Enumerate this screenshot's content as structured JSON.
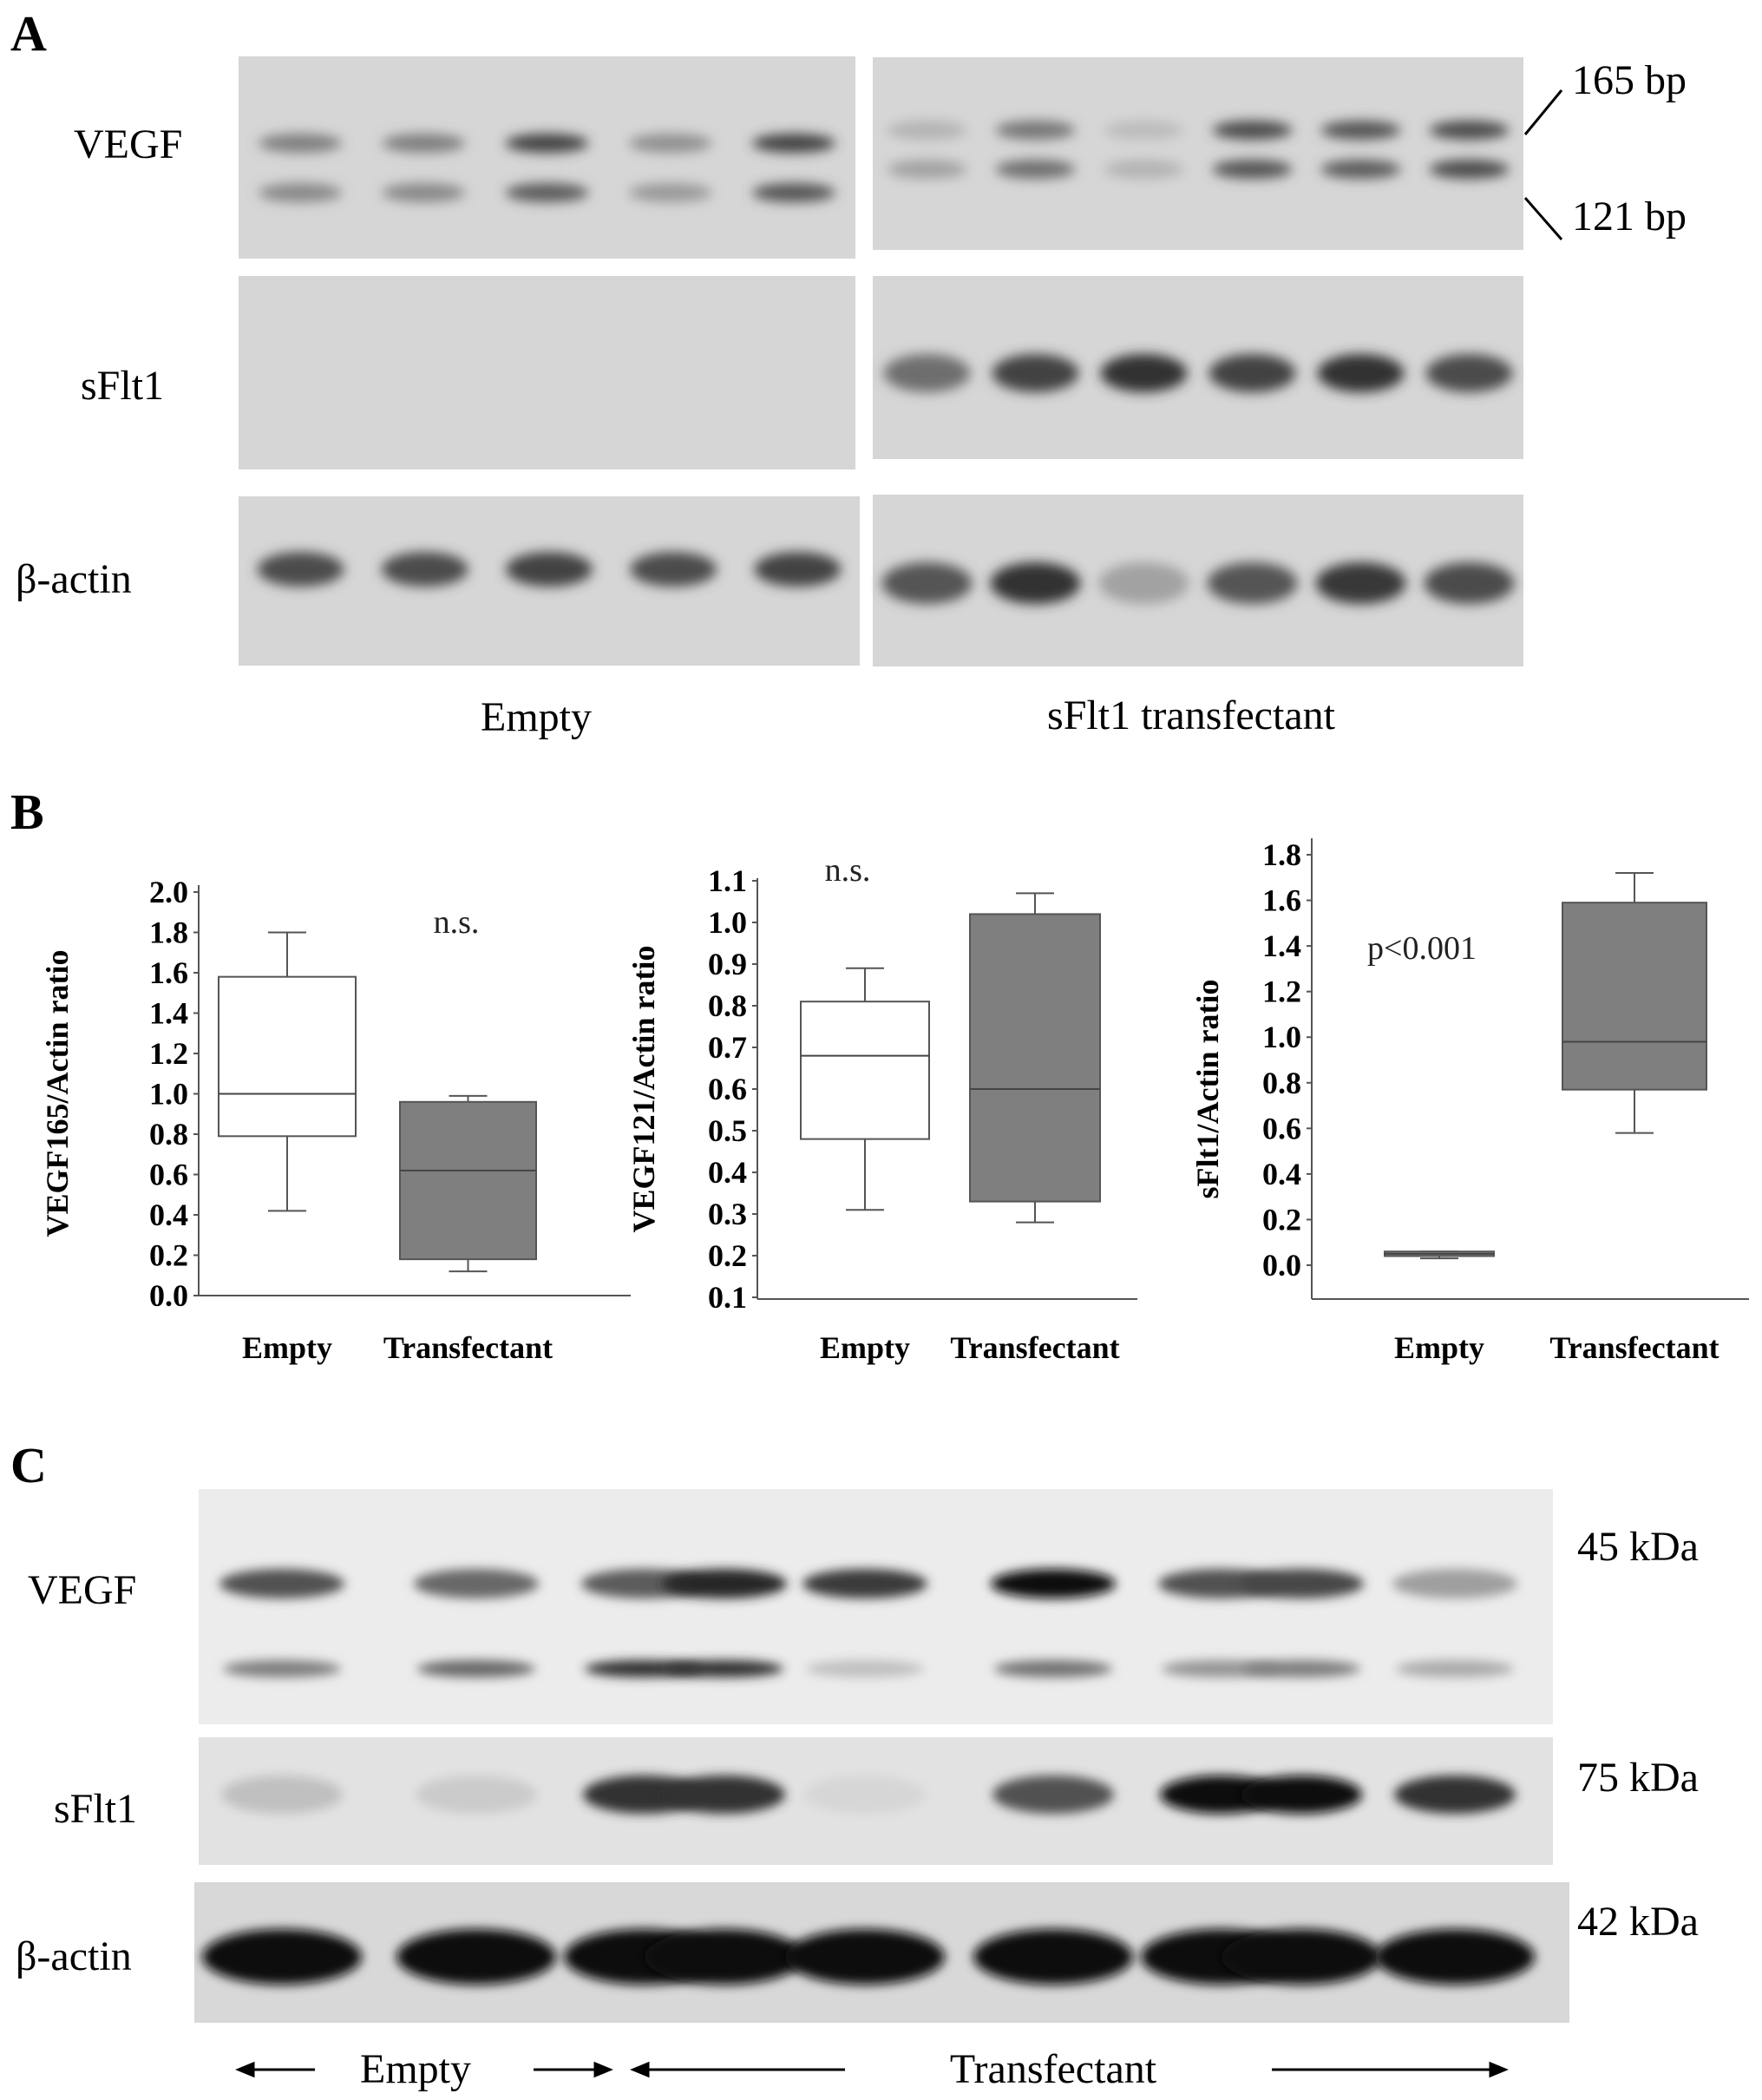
{
  "panels": {
    "a": {
      "letter": "A",
      "row_labels": [
        "VEGF",
        "sFlt1",
        "β-actin"
      ],
      "size_markers": [
        "165 bp",
        "121 bp"
      ],
      "group_labels": [
        "Empty",
        "sFlt1 transfectant"
      ],
      "band_intensity": {
        "vegf_165_empty": [
          0.5,
          0.5,
          0.85,
          0.4,
          0.85
        ],
        "vegf_121_empty": [
          0.45,
          0.45,
          0.7,
          0.35,
          0.75
        ],
        "vegf_165_transfectant": [
          0.2,
          0.55,
          0.15,
          0.8,
          0.75,
          0.8
        ],
        "vegf_121_transfectant": [
          0.3,
          0.6,
          0.2,
          0.75,
          0.7,
          0.8
        ],
        "sflt1_empty": [
          0,
          0,
          0,
          0,
          0
        ],
        "sflt1_transfectant": [
          0.6,
          0.85,
          0.95,
          0.85,
          0.95,
          0.8
        ],
        "actin_empty": [
          0.8,
          0.8,
          0.85,
          0.8,
          0.85
        ],
        "actin_transfectant": [
          0.75,
          0.95,
          0.3,
          0.75,
          0.9,
          0.8
        ]
      }
    },
    "b": {
      "letter": "B"
    },
    "c": {
      "letter": "C",
      "row_labels": [
        "VEGF",
        "sFlt1",
        "β-actin"
      ],
      "size_markers": [
        "45 kDa",
        "75 kDa",
        "42 kDa"
      ],
      "group_labels": [
        "Empty",
        "Transfectant"
      ],
      "band_intensity": {
        "vegf_upper": [
          0.7,
          0.6,
          0.65,
          0.9,
          0.8,
          1.0,
          0.7,
          0.75,
          0.35
        ],
        "vegf_lower": [
          0.5,
          0.6,
          0.85,
          0.85,
          0.2,
          0.55,
          0.4,
          0.5,
          0.3
        ],
        "sflt1": [
          0.2,
          0.15,
          0.85,
          0.85,
          0.1,
          0.7,
          1.0,
          1.0,
          0.85
        ],
        "actin": [
          1,
          1,
          1,
          1,
          1,
          1,
          1,
          1,
          1
        ]
      }
    }
  },
  "chart_data": [
    {
      "type": "box",
      "ylabel": "VEGF165/Actin ratio",
      "categories": [
        "Empty",
        "Transfectant"
      ],
      "ylim": [
        0.0,
        2.0
      ],
      "yticks": [
        "0.0",
        "0.2",
        "0.4",
        "0.6",
        "0.8",
        "1.0",
        "1.2",
        "1.4",
        "1.6",
        "1.8",
        "2.0"
      ],
      "annotation": "n.s.",
      "boxes": [
        {
          "category": "Empty",
          "min": 0.42,
          "q1": 0.79,
          "median": 1.0,
          "q3": 1.58,
          "max": 1.8,
          "fill": "#ffffff"
        },
        {
          "category": "Transfectant",
          "min": 0.12,
          "q1": 0.18,
          "median": 0.62,
          "q3": 0.96,
          "max": 0.99,
          "fill": "#7f7f7f"
        }
      ]
    },
    {
      "type": "box",
      "ylabel": "VEGF121/Actin ratio",
      "categories": [
        "Empty",
        "Transfectant"
      ],
      "ylim": [
        0.1,
        1.1
      ],
      "yticks": [
        "0.1",
        "0.2",
        "0.3",
        "0.4",
        "0.5",
        "0.6",
        "0.7",
        "0.8",
        "0.9",
        "1.0",
        "1.1"
      ],
      "annotation": "n.s.",
      "boxes": [
        {
          "category": "Empty",
          "min": 0.31,
          "q1": 0.48,
          "median": 0.68,
          "q3": 0.81,
          "max": 0.89,
          "fill": "#ffffff"
        },
        {
          "category": "Transfectant",
          "min": 0.28,
          "q1": 0.33,
          "median": 0.6,
          "q3": 1.02,
          "max": 1.07,
          "fill": "#7f7f7f"
        }
      ]
    },
    {
      "type": "box",
      "ylabel": "sFlt1/Actin ratio",
      "categories": [
        "Empty",
        "Transfectant"
      ],
      "ylim": [
        0.0,
        1.8
      ],
      "yticks": [
        "0.0",
        "0.2",
        "0.4",
        "0.6",
        "0.8",
        "1.0",
        "1.2",
        "1.4",
        "1.6",
        "1.8"
      ],
      "annotation": "p<0.001",
      "boxes": [
        {
          "category": "Empty",
          "min": 0.03,
          "q1": 0.04,
          "median": 0.05,
          "q3": 0.06,
          "max": 0.06,
          "fill": "#7f7f7f"
        },
        {
          "category": "Transfectant",
          "min": 0.58,
          "q1": 0.77,
          "median": 0.98,
          "q3": 1.59,
          "max": 1.72,
          "fill": "#7f7f7f"
        }
      ]
    }
  ]
}
